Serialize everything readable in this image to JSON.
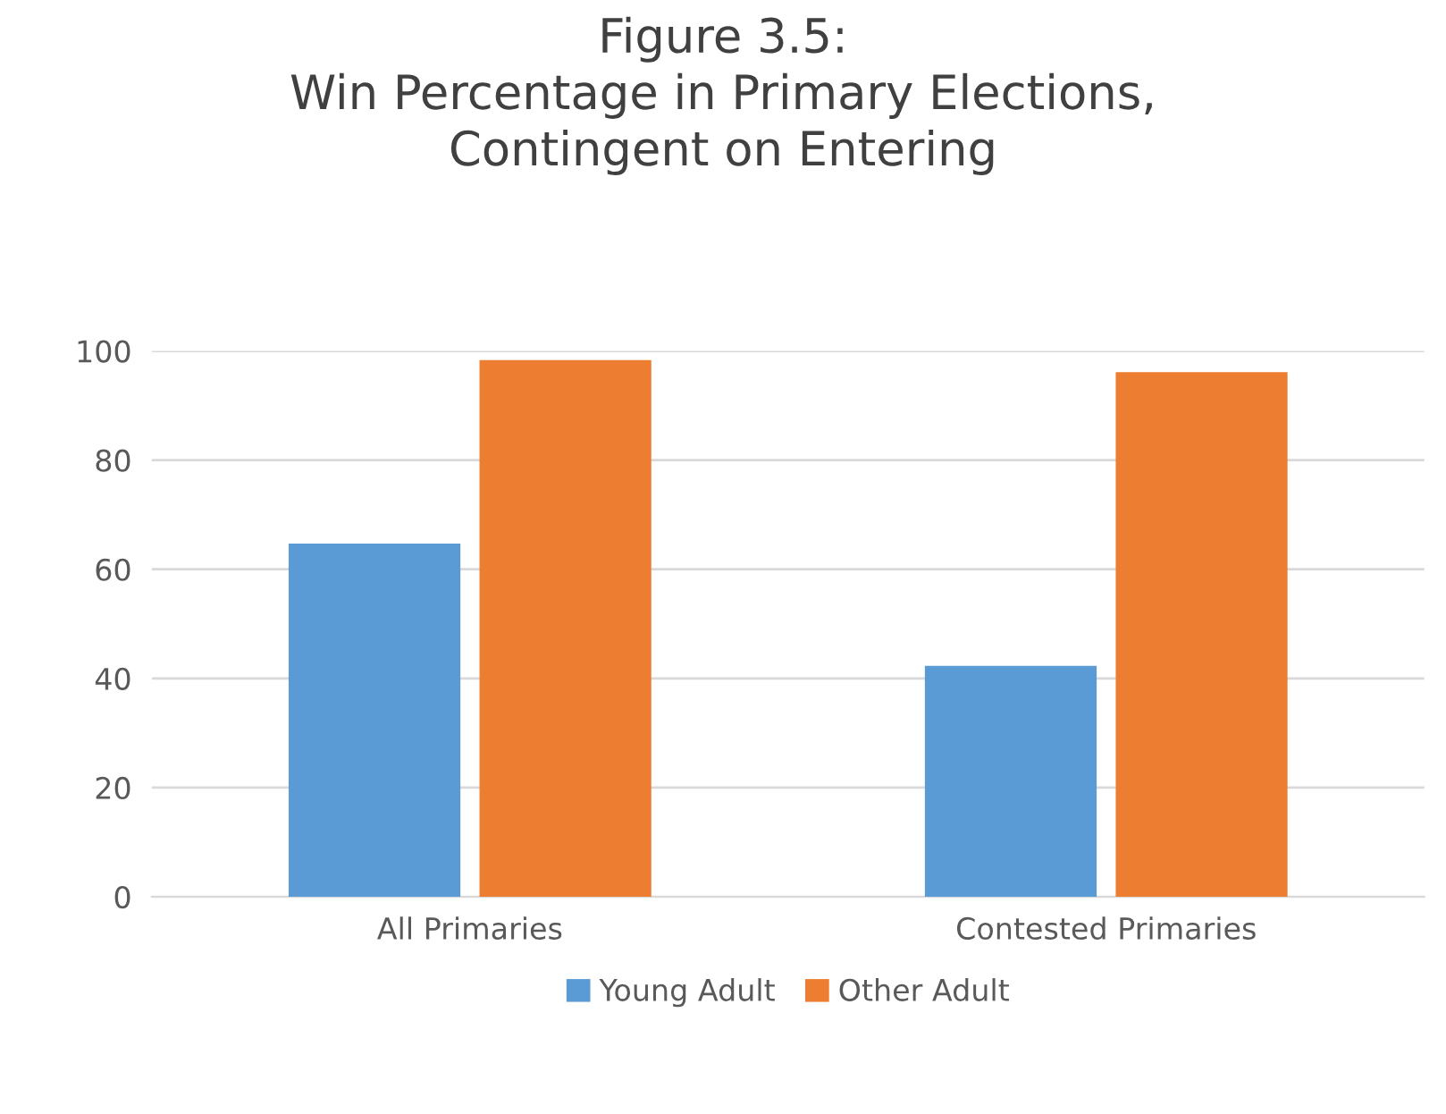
{
  "chart_data": {
    "type": "bar",
    "title": "Figure 3.5:\nWin Percentage in Primary Elections,\nContingent on Entering",
    "categories": [
      "All Primaries",
      "Contested Primaries"
    ],
    "series": [
      {
        "name": "Young Adult",
        "color": "#5b9bd5",
        "values": [
          64.7,
          42.3
        ]
      },
      {
        "name": "Other Adult",
        "color": "#ed7d31",
        "values": [
          98.3,
          96.1
        ]
      }
    ],
    "ylim": [
      0,
      100
    ],
    "yticks": [
      0,
      20,
      40,
      60,
      80,
      100
    ],
    "grid": "y",
    "legend": "bottom"
  }
}
